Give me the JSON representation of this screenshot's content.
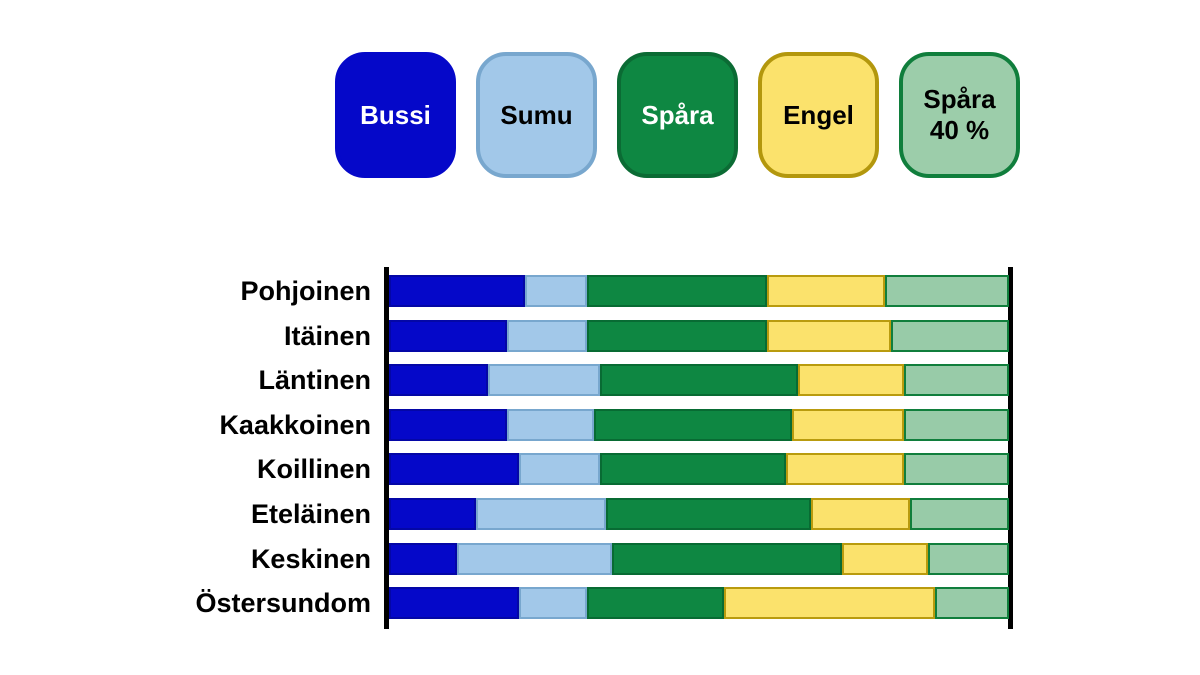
{
  "page": {
    "background": "#ffffff"
  },
  "legend": {
    "position": "top",
    "items": [
      {
        "id": "bussi",
        "label": "Bussi",
        "fill": "#0508C9",
        "border": "#0508C9",
        "text_color": "#ffffff"
      },
      {
        "id": "sumu",
        "label": "Sumu",
        "fill": "#A2C8E9",
        "border": "#78A7CE",
        "text_color": "#000000"
      },
      {
        "id": "spara",
        "label": "Spåra",
        "fill": "#0E8742",
        "border": "#0B6B34",
        "text_color": "#ffffff"
      },
      {
        "id": "engel",
        "label": "Engel",
        "fill": "#FBE26C",
        "border": "#B3970D",
        "text_color": "#000000"
      },
      {
        "id": "spara-40",
        "label": "Spåra\n40 %",
        "fill": "#9CCDAA",
        "border": "#107E3C",
        "text_color": "#000000"
      }
    ]
  },
  "chart_data": {
    "type": "bar",
    "stacked": true,
    "orientation": "horizontal",
    "unit": "%",
    "xlim": [
      0,
      100
    ],
    "grid": false,
    "axis_color": "#000000",
    "legend_position": "top",
    "categories": [
      "Pohjoinen",
      "Itäinen",
      "Läntinen",
      "Kaakkoinen",
      "Koillinen",
      "Eteläinen",
      "Keskinen",
      "Östersundom"
    ],
    "series": [
      {
        "id": "bussi",
        "name": "Bussi",
        "fill": "#0508C9",
        "border": "#0407A6",
        "values": [
          22,
          19,
          16,
          19,
          21,
          14,
          11,
          21
        ]
      },
      {
        "id": "sumu",
        "name": "Sumu",
        "fill": "#A2C8E9",
        "border": "#78A7CE",
        "values": [
          10,
          13,
          18,
          14,
          13,
          21,
          25,
          11
        ]
      },
      {
        "id": "spara",
        "name": "Spåra",
        "fill": "#0E8742",
        "border": "#086B33",
        "values": [
          29,
          29,
          32,
          32,
          30,
          33,
          37,
          22
        ]
      },
      {
        "id": "engel",
        "name": "Engel",
        "fill": "#FBE26C",
        "border": "#B99B0E",
        "values": [
          19,
          20,
          17,
          18,
          19,
          16,
          14,
          34
        ]
      },
      {
        "id": "spara-40",
        "name": "Spåra 40 %",
        "fill": "#98CBA8",
        "border": "#107E3C",
        "values": [
          20,
          19,
          17,
          17,
          17,
          16,
          13,
          12
        ]
      }
    ]
  }
}
